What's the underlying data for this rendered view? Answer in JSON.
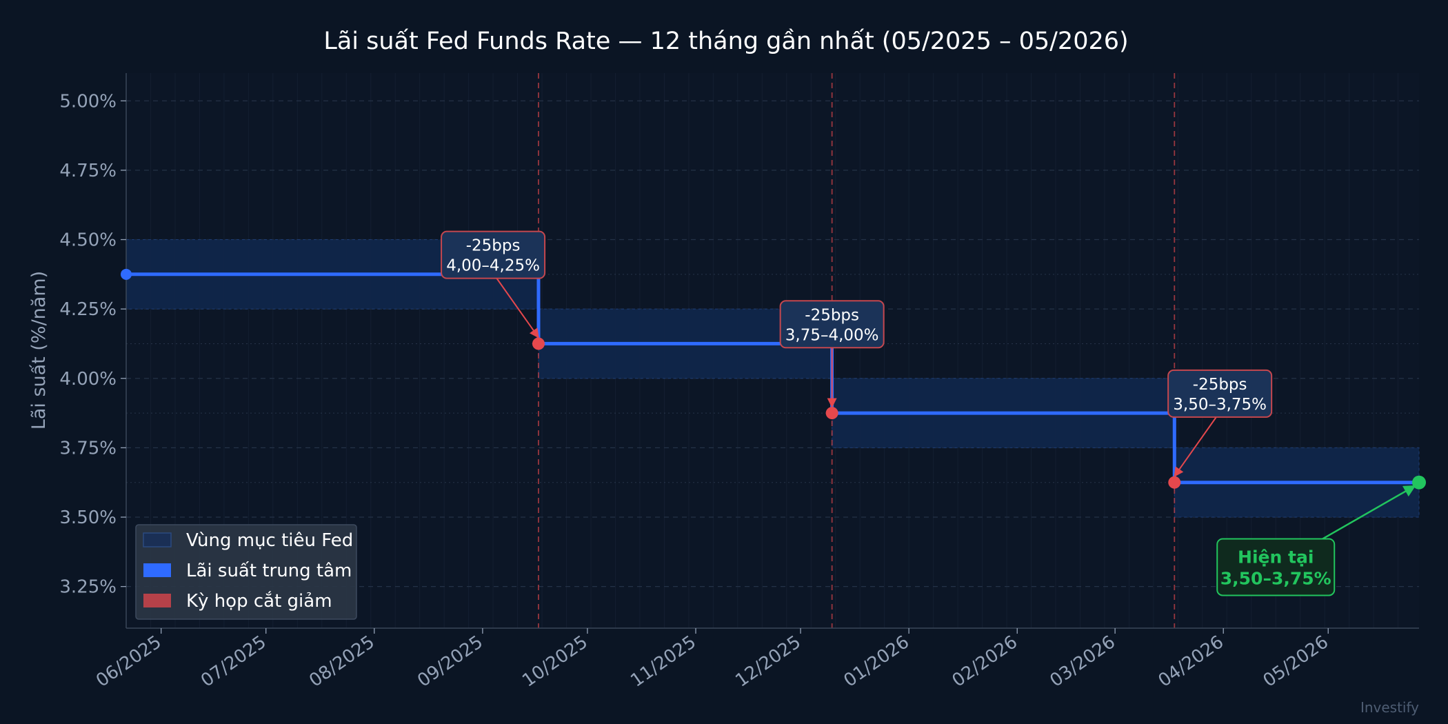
{
  "watermark": "Investify",
  "colors": {
    "background": "#0b1524",
    "plot_bg": "#0c1626",
    "band_fill": "#10264a",
    "band_edge": "#1e3d74",
    "rate_line": "#2f6bff",
    "cut_marker": "#e5484d",
    "current_marker": "#22c55e",
    "text": "#ffffff",
    "tick_text": "#95a3b8",
    "grid": "#243247"
  },
  "chart_data": {
    "type": "line",
    "title": "Lãi suất Fed Funds Rate — 12 tháng gần nhất (05/2025 – 05/2026)",
    "ylabel": "Lãi suất (%/năm)",
    "xlabel": "",
    "xlim": [
      "2025-05-22",
      "2026-05-27"
    ],
    "ylim": [
      3.1,
      5.1
    ],
    "y_ticks": [
      3.25,
      3.5,
      3.75,
      4.0,
      4.25,
      4.5,
      4.75,
      5.0
    ],
    "y_tick_labels": [
      "3.25%",
      "3.50%",
      "3.75%",
      "4.00%",
      "4.25%",
      "4.50%",
      "4.75%",
      "5.00%"
    ],
    "x_ticks": [
      "2025-06-01",
      "2025-07-01",
      "2025-08-01",
      "2025-09-01",
      "2025-10-01",
      "2025-11-01",
      "2025-12-01",
      "2026-01-01",
      "2026-02-01",
      "2026-03-01",
      "2026-04-01",
      "2026-05-01"
    ],
    "x_tick_labels": [
      "06/2025",
      "07/2025",
      "08/2025",
      "09/2025",
      "10/2025",
      "11/2025",
      "12/2025",
      "01/2026",
      "02/2026",
      "03/2026",
      "04/2026",
      "05/2026"
    ],
    "grid": true,
    "legend_position": "bottom-left",
    "legend": [
      {
        "label": "Vùng mục tiêu Fed",
        "key": "band"
      },
      {
        "label": "Lãi suất trung tâm",
        "key": "line"
      },
      {
        "label": "Kỳ họp cắt giảm",
        "key": "cut"
      }
    ],
    "target_bands": [
      {
        "start": "2025-05-22",
        "end": "2025-09-17",
        "low": 4.25,
        "high": 4.5
      },
      {
        "start": "2025-09-17",
        "end": "2025-12-10",
        "low": 4.0,
        "high": 4.25
      },
      {
        "start": "2025-12-10",
        "end": "2026-03-18",
        "low": 3.75,
        "high": 4.0
      },
      {
        "start": "2026-03-18",
        "end": "2026-05-27",
        "low": 3.5,
        "high": 3.75
      }
    ],
    "series": [
      {
        "name": "Lãi suất trung tâm",
        "x": [
          "2025-05-22",
          "2025-09-17",
          "2025-09-17",
          "2025-12-10",
          "2025-12-10",
          "2026-03-18",
          "2026-03-18",
          "2026-05-27"
        ],
        "y": [
          4.375,
          4.375,
          4.125,
          4.125,
          3.875,
          3.875,
          3.625,
          3.625
        ]
      }
    ],
    "cut_meetings": [
      {
        "date": "2025-09-17",
        "rate": 4.125,
        "label_line1": "-25bps",
        "label_line2": "4,00–4,25%",
        "label_date": "2025-09-04",
        "label_y": 4.445
      },
      {
        "date": "2025-12-10",
        "rate": 3.875,
        "label_line1": "-25bps",
        "label_line2": "3,75–4,00%",
        "label_date": "2025-12-10",
        "label_y": 4.195
      },
      {
        "date": "2026-03-18",
        "rate": 3.625,
        "label_line1": "-25bps",
        "label_line2": "3,50–3,75%",
        "label_date": "2026-03-31",
        "label_y": 3.945
      }
    ],
    "current": {
      "date": "2026-05-27",
      "rate": 3.625,
      "label_line1": "Hiện tại",
      "label_line2": "3,50–3,75%",
      "label_date": "2026-04-16",
      "label_y": 3.32
    }
  }
}
